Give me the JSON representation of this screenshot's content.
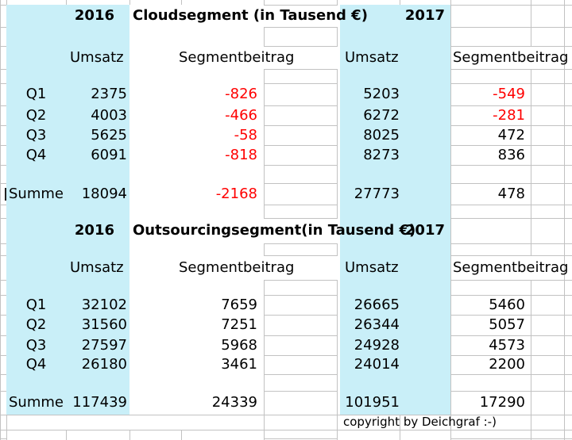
{
  "colors": {
    "highlight_fill": "#c9eff8",
    "negative_number": "#ff0000",
    "gridline": "#c2c2c2",
    "text": "#000000"
  },
  "tables": [
    {
      "year_left": "2016",
      "title": "Cloudsegment (in Tausend €)",
      "year_right": "2017",
      "headers": {
        "umsatz_left": "Umsatz",
        "segment_left": "Segmentbeitrag",
        "umsatz_right": "Umsatz",
        "segment_right": "Segmentbeitrag"
      },
      "rows": [
        {
          "label": "Q1",
          "u16": "2375",
          "s16": "-826",
          "u17": "5203",
          "s17": "-549"
        },
        {
          "label": "Q2",
          "u16": "4003",
          "s16": "-466",
          "u17": "6272",
          "s17": "-281"
        },
        {
          "label": "Q3",
          "u16": "5625",
          "s16": "-58",
          "u17": "8025",
          "s17": "472"
        },
        {
          "label": "Q4",
          "u16": "6091",
          "s16": "-818",
          "u17": "8273",
          "s17": "836"
        }
      ],
      "total": {
        "label": "Summe",
        "u16": "18094",
        "s16": "-2168",
        "u17": "27773",
        "s17": "478"
      }
    },
    {
      "year_left": "2016",
      "title": "Outsourcingsegment(in Tausend €)",
      "year_right": "2017",
      "headers": {
        "umsatz_left": "Umsatz",
        "segment_left": "Segmentbeitrag",
        "umsatz_right": "Umsatz",
        "segment_right": "Segmentbeitrag"
      },
      "rows": [
        {
          "label": "Q1",
          "u16": "32102",
          "s16": "7659",
          "u17": "26665",
          "s17": "5460"
        },
        {
          "label": "Q2",
          "u16": "31560",
          "s16": "7251",
          "u17": "26344",
          "s17": "5057"
        },
        {
          "label": "Q3",
          "u16": "27597",
          "s16": "5968",
          "u17": "24928",
          "s17": "4573"
        },
        {
          "label": "Q4",
          "u16": "26180",
          "s16": "3461",
          "u17": "24014",
          "s17": "2200"
        }
      ],
      "total": {
        "label": "Summe",
        "u16": "117439",
        "s16": "24339",
        "u17": "101951",
        "s17": "17290"
      }
    }
  ],
  "footer": {
    "copyright": "copyright by Deichgraf :-)"
  }
}
